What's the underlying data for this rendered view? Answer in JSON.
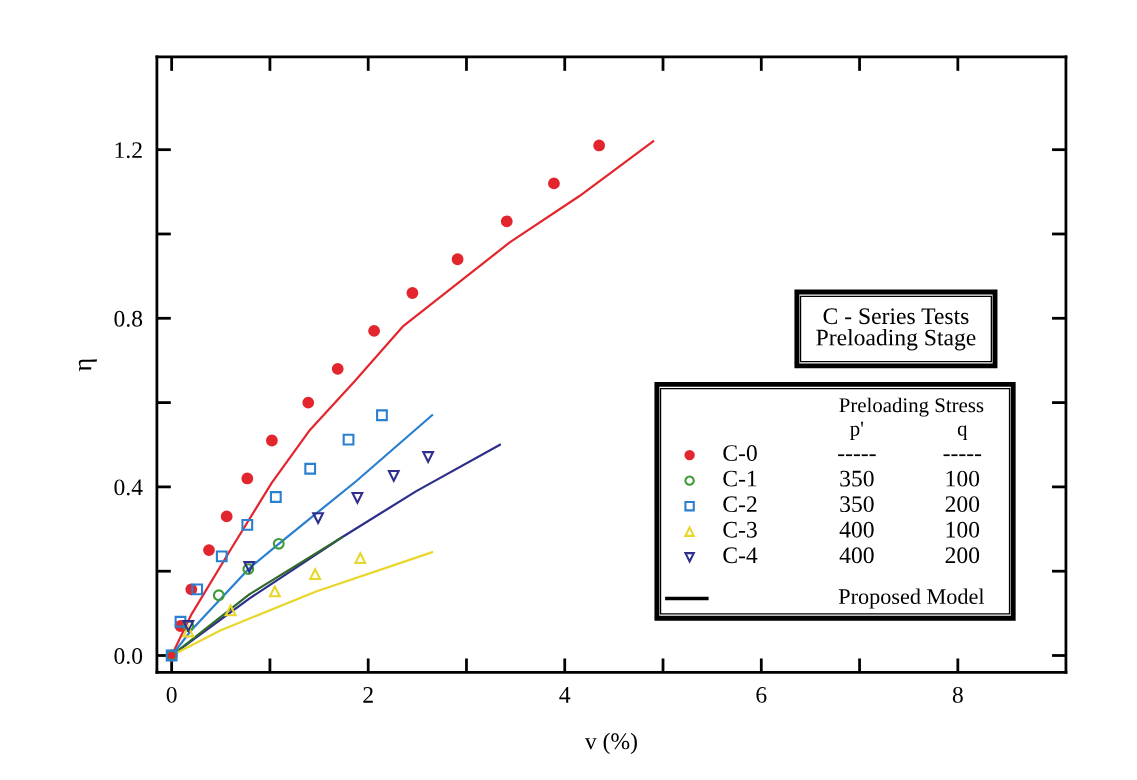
{
  "chart_data": {
    "type": "scatter",
    "xlabel": "v (%)",
    "ylabel": "η",
    "legend": "right",
    "legend_title": "Preloading Stress",
    "xlim": [
      -0.15,
      9.1
    ],
    "ylim": [
      -0.04,
      1.42
    ],
    "xticks": [
      0,
      {
        "value": 1,
        "label": null
      },
      2,
      {
        "value": 3,
        "label": null
      },
      4,
      {
        "value": 5,
        "label": null
      },
      6,
      {
        "value": 7,
        "label": null
      },
      8
    ],
    "yticks": [
      {
        "value": 0,
        "label": "0.0"
      },
      {
        "value": 0.2,
        "label": null
      },
      {
        "value": 0.4,
        "label": "0.4"
      },
      {
        "value": 0.6,
        "label": null
      },
      {
        "value": 0.8,
        "label": "0.8"
      },
      {
        "value": 1.0,
        "label": null
      },
      {
        "value": 1.2,
        "label": "1.2"
      }
    ],
    "grid": false,
    "annotations": [
      "C - Series Tests\nPreloading Stage",
      "p'",
      "q",
      "-----",
      "-----",
      "350",
      "100",
      "350",
      "200",
      "400",
      "100",
      "400",
      "200",
      "Proposed Model"
    ],
    "series": [
      {
        "name": "C-0",
        "marker": "circle",
        "color": "#e3262e",
        "x": [
          0,
          0.09,
          0.2,
          0.38,
          0.56,
          0.77,
          1.02,
          1.39,
          1.69,
          2.06,
          2.45,
          2.91,
          3.41,
          3.89,
          4.35
        ],
        "values": [
          0,
          0.07,
          0.157,
          0.25,
          0.33,
          0.42,
          0.51,
          0.6,
          0.68,
          0.77,
          0.86,
          0.94,
          1.03,
          1.12,
          1.21
        ]
      },
      {
        "name": "C-1",
        "marker": "circle-open",
        "color": "#3d9a35",
        "x": [
          0,
          0.17,
          0.48,
          0.78,
          1.09
        ],
        "values": [
          0,
          0.07,
          0.143,
          0.205,
          0.265
        ]
      },
      {
        "name": "C-2",
        "marker": "square-open",
        "color": "#2a7fd0",
        "x": [
          0,
          0.09,
          0.26,
          0.51,
          0.77,
          1.06,
          1.41,
          1.8,
          2.14
        ],
        "values": [
          0,
          0.08,
          0.157,
          0.235,
          0.31,
          0.376,
          0.443,
          0.512,
          0.57
        ]
      },
      {
        "name": "C-3",
        "marker": "triangle-open",
        "color": "#e8d62a",
        "x": [
          0.17,
          0.6,
          1.05,
          1.46,
          1.92
        ],
        "values": [
          0.057,
          0.107,
          0.152,
          0.193,
          0.231
        ]
      },
      {
        "name": "C-4",
        "marker": "triangle_down-open",
        "color": "#2e2e8c",
        "x": [
          0.17,
          0.79,
          1.49,
          1.89,
          2.26,
          2.61
        ],
        "values": [
          0.07,
          0.21,
          0.326,
          0.374,
          0.426,
          0.471
        ]
      },
      {
        "type": "line",
        "color": "#e3262e",
        "x": [
          0,
          0.2,
          0.61,
          1.02,
          1.4,
          1.86,
          2.35,
          3.44,
          4.15,
          4.9
        ],
        "values": [
          0,
          0.097,
          0.255,
          0.41,
          0.533,
          0.65,
          0.78,
          0.98,
          1.09,
          1.22
        ]
      },
      {
        "type": "line",
        "color": "#2e2e8c",
        "x": [
          0,
          0.79,
          1.73,
          2.49,
          3.34
        ],
        "values": [
          0,
          0.135,
          0.28,
          0.39,
          0.5
        ]
      },
      {
        "type": "line",
        "color": "#2f6a2a",
        "x": [
          0,
          0.79,
          1.73
        ],
        "values": [
          0,
          0.145,
          0.28
        ]
      },
      {
        "type": "line",
        "color": "#2a7fd0",
        "x": [
          0,
          0.2,
          0.79,
          1.09,
          1.88,
          2.65
        ],
        "values": [
          0,
          0.06,
          0.207,
          0.265,
          0.414,
          0.57
        ]
      },
      {
        "type": "line",
        "color": "#e8d62a",
        "x": [
          0,
          0.5,
          1.47,
          2.65
        ],
        "values": [
          0,
          0.06,
          0.152,
          0.245
        ]
      }
    ]
  }
}
